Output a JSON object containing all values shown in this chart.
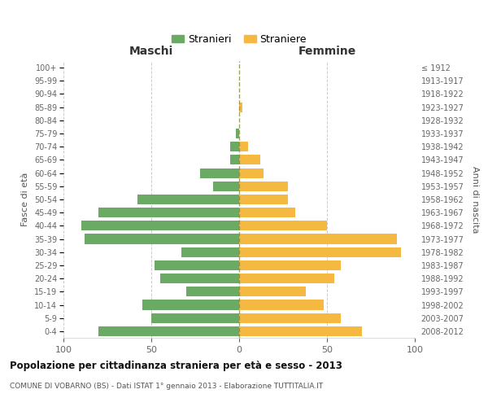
{
  "age_groups": [
    "0-4",
    "5-9",
    "10-14",
    "15-19",
    "20-24",
    "25-29",
    "30-34",
    "35-39",
    "40-44",
    "45-49",
    "50-54",
    "55-59",
    "60-64",
    "65-69",
    "70-74",
    "75-79",
    "80-84",
    "85-89",
    "90-94",
    "95-99",
    "100+"
  ],
  "birth_years": [
    "2008-2012",
    "2003-2007",
    "1998-2002",
    "1993-1997",
    "1988-1992",
    "1983-1987",
    "1978-1982",
    "1973-1977",
    "1968-1972",
    "1963-1967",
    "1958-1962",
    "1953-1957",
    "1948-1952",
    "1943-1947",
    "1938-1942",
    "1933-1937",
    "1928-1932",
    "1923-1927",
    "1918-1922",
    "1913-1917",
    "≤ 1912"
  ],
  "males": [
    80,
    50,
    55,
    30,
    45,
    48,
    33,
    88,
    90,
    80,
    58,
    15,
    22,
    5,
    5,
    2,
    0,
    0,
    0,
    0,
    0
  ],
  "females": [
    70,
    58,
    48,
    38,
    54,
    58,
    92,
    90,
    50,
    32,
    28,
    28,
    14,
    12,
    5,
    0,
    0,
    2,
    0,
    0,
    0
  ],
  "male_color": "#6aaa64",
  "female_color": "#f5b942",
  "title": "Popolazione per cittadinanza straniera per età e sesso - 2013",
  "subtitle": "COMUNE DI VOBARNO (BS) - Dati ISTAT 1° gennaio 2013 - Elaborazione TUTTITALIA.IT",
  "label_maschi": "Maschi",
  "label_femmine": "Femmine",
  "ylabel_left": "Fasce di età",
  "ylabel_right": "Anni di nascita",
  "legend_male": "Stranieri",
  "legend_female": "Straniere",
  "xlim": 100,
  "background_color": "#ffffff",
  "grid_color": "#cccccc",
  "center_line_color": "#888844"
}
